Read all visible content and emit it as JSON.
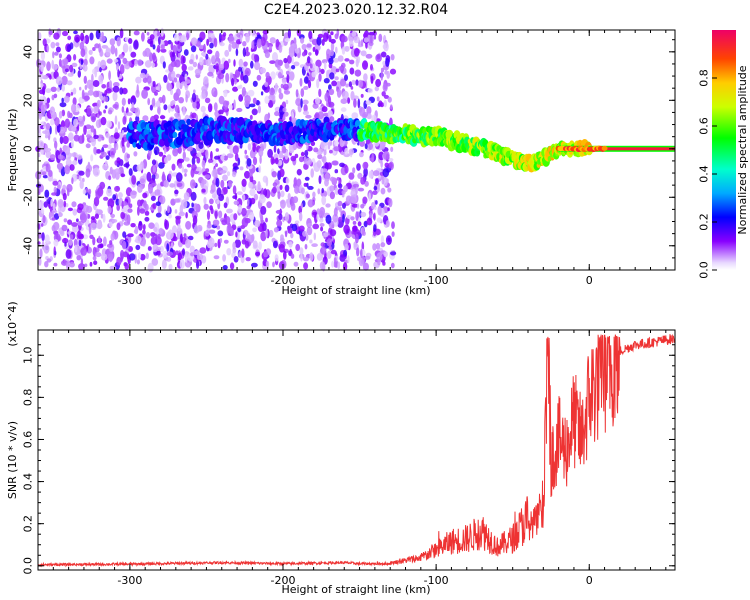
{
  "title": "C2E4.2023.020.12.32.R04",
  "chart_data": [
    {
      "type": "heatmap",
      "xlabel": "Height of straight line (km)",
      "ylabel": "Frequency (Hz)",
      "xlim": [
        -360,
        56
      ],
      "ylim": [
        -50,
        49
      ],
      "xticks": [
        -300,
        -200,
        -100,
        0
      ],
      "yticks": [
        -40,
        -20,
        0,
        20,
        40
      ],
      "colorbar": {
        "label": "Normalized spectral amplitude",
        "range": [
          0.0,
          1.0
        ],
        "ticks": [
          "0.0",
          "0.2",
          "0.4",
          "0.6",
          "0.8"
        ],
        "tick_values": [
          0.0,
          0.2,
          0.4,
          0.6,
          0.8
        ]
      },
      "noise_region_x": [
        -360,
        -128
      ],
      "ridge": {
        "x": [
          -360,
          -270,
          -240,
          -200,
          -180,
          -150,
          -120,
          -100,
          -80,
          -60,
          -40,
          -30,
          -20,
          -10,
          0,
          56
        ],
        "freq": [
          4,
          6,
          8,
          6,
          8,
          8,
          6,
          5,
          2,
          -2,
          -6,
          -4,
          0,
          0,
          0,
          0
        ]
      }
    },
    {
      "type": "line",
      "xlabel": "Height of straight line (km)",
      "ylabel": "SNR (10 * v/v)",
      "y_multiplier": "(x10^4)",
      "xlim": [
        -360,
        56
      ],
      "ylim": [
        -0.02,
        1.12
      ],
      "xticks": [
        -300,
        -200,
        -100,
        0
      ],
      "yticks": [
        0.0,
        0.2,
        0.4,
        0.6,
        0.8,
        1.0
      ],
      "series": [
        {
          "color": "#ee3333",
          "x": [
            -360,
            -300,
            -240,
            -200,
            -160,
            -150,
            -130,
            -110,
            -100,
            -90,
            -80,
            -70,
            -60,
            -50,
            -40,
            -30,
            -27,
            -25,
            -20,
            -15,
            -10,
            -5,
            0,
            10,
            20,
            30,
            40,
            56
          ],
          "y": [
            0.005,
            0.008,
            0.015,
            0.01,
            0.015,
            0.01,
            0.01,
            0.03,
            0.06,
            0.09,
            0.1,
            0.13,
            0.07,
            0.1,
            0.18,
            0.25,
            1.05,
            0.5,
            0.6,
            0.55,
            0.7,
            0.6,
            0.8,
            0.95,
            1.02,
            1.05,
            1.06,
            1.08
          ]
        }
      ]
    }
  ]
}
